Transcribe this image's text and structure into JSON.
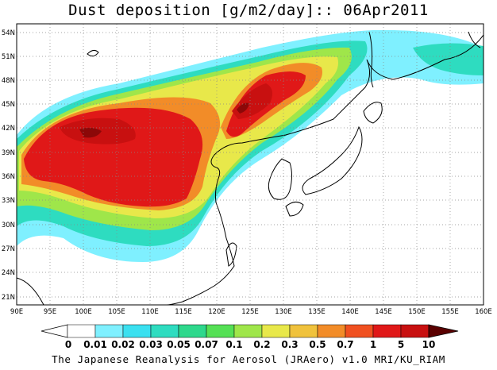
{
  "title": "Dust deposition [g/m2/day]:: 06Apr2011",
  "footer": "The Japanese Reanalysis for Aerosol (JRAero) v1.0 MRI/KU_RIAM",
  "map": {
    "lon_range": [
      90,
      160
    ],
    "lat_range": [
      20,
      55
    ],
    "x_ticks": [
      "90E",
      "95E",
      "100E",
      "105E",
      "110E",
      "115E",
      "120E",
      "125E",
      "130E",
      "135E",
      "140E",
      "145E",
      "150E",
      "155E",
      "160E"
    ],
    "y_ticks": [
      "21N",
      "24N",
      "27N",
      "30N",
      "33N",
      "36N",
      "39N",
      "42N",
      "45N",
      "48N",
      "51N",
      "54N"
    ],
    "gridlines": true
  },
  "colorbar": {
    "levels": [
      "0",
      "0.01",
      "0.02",
      "0.03",
      "0.05",
      "0.07",
      "0.1",
      "0.2",
      "0.3",
      "0.5",
      "0.7",
      "1",
      "5",
      "10"
    ],
    "colors": [
      "#ffffff",
      "#7ff0ff",
      "#3ae0f0",
      "#2edcc0",
      "#2ed88c",
      "#55e055",
      "#9fe64a",
      "#e8e84a",
      "#f0c23c",
      "#f28c28",
      "#f05020",
      "#e01818",
      "#c81010",
      "#8c0808",
      "#5a0000"
    ]
  }
}
